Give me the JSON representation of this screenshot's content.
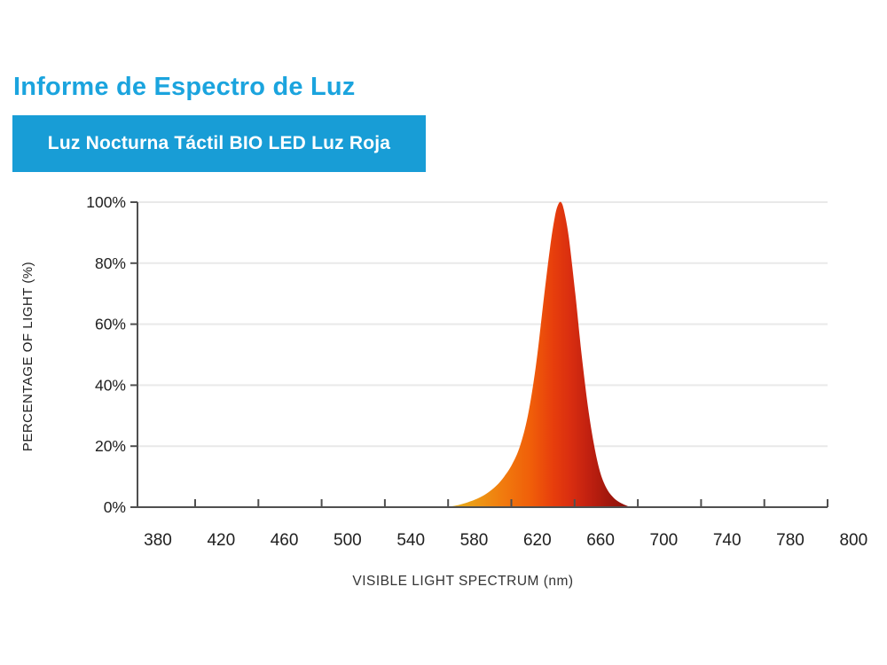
{
  "header": {
    "title": "Informe de Espectro de Luz",
    "badge_label": "Luz Nocturna Táctil BIO LED Luz Roja",
    "accent_color": "#1BA4DE",
    "badge_color": "#189DD6"
  },
  "chart_data": {
    "type": "area",
    "title": "",
    "xlabel": "VISIBLE LIGHT SPECTRUM (nm)",
    "ylabel": "PERCENTAGE OF LIGHT (%)",
    "x_tick_labels": [
      "380",
      "420",
      "460",
      "500",
      "540",
      "580",
      "620",
      "660",
      "700",
      "740",
      "780",
      "800"
    ],
    "y_tick_labels": [
      "0%",
      "20%",
      "40%",
      "60%",
      "80%",
      "100%"
    ],
    "xlim_nm": [
      380,
      800
    ],
    "ylim": [
      0,
      100
    ],
    "grid": true,
    "legend": "none",
    "series": [
      {
        "name": "red-led-emission",
        "peak_nm": 635,
        "peak_pct": 100,
        "range_nm": [
          563,
          679
        ],
        "points": [
          [
            563,
            0
          ],
          [
            570,
            0.7
          ],
          [
            576,
            1.6
          ],
          [
            582,
            2.8
          ],
          [
            588,
            4.5
          ],
          [
            594,
            7
          ],
          [
            599,
            10
          ],
          [
            604,
            14
          ],
          [
            609,
            20
          ],
          [
            614,
            30
          ],
          [
            619,
            46
          ],
          [
            624,
            68
          ],
          [
            628,
            85
          ],
          [
            631,
            95
          ],
          [
            633,
            99
          ],
          [
            635,
            100
          ],
          [
            637,
            97
          ],
          [
            640,
            88
          ],
          [
            644,
            70
          ],
          [
            648,
            50
          ],
          [
            652,
            33
          ],
          [
            656,
            20
          ],
          [
            660,
            11
          ],
          [
            664,
            6
          ],
          [
            668,
            3.2
          ],
          [
            672,
            1.6
          ],
          [
            676,
            0.6
          ],
          [
            679,
            0
          ]
        ]
      }
    ],
    "gradient_stops": [
      {
        "nm": 563,
        "color": "#E3B11D"
      },
      {
        "nm": 580,
        "color": "#EC9A16"
      },
      {
        "nm": 598,
        "color": "#F17B0E"
      },
      {
        "nm": 616,
        "color": "#F05E09"
      },
      {
        "nm": 630,
        "color": "#E73E0C"
      },
      {
        "nm": 641,
        "color": "#D92E10"
      },
      {
        "nm": 652,
        "color": "#C22110"
      },
      {
        "nm": 664,
        "color": "#A4180D"
      },
      {
        "nm": 679,
        "color": "#8A120B"
      }
    ],
    "colors": {
      "axis": "#4F4F4F",
      "grid": "#E9E9E9",
      "tick_label": "#202020",
      "axis_title": "#333333"
    }
  }
}
